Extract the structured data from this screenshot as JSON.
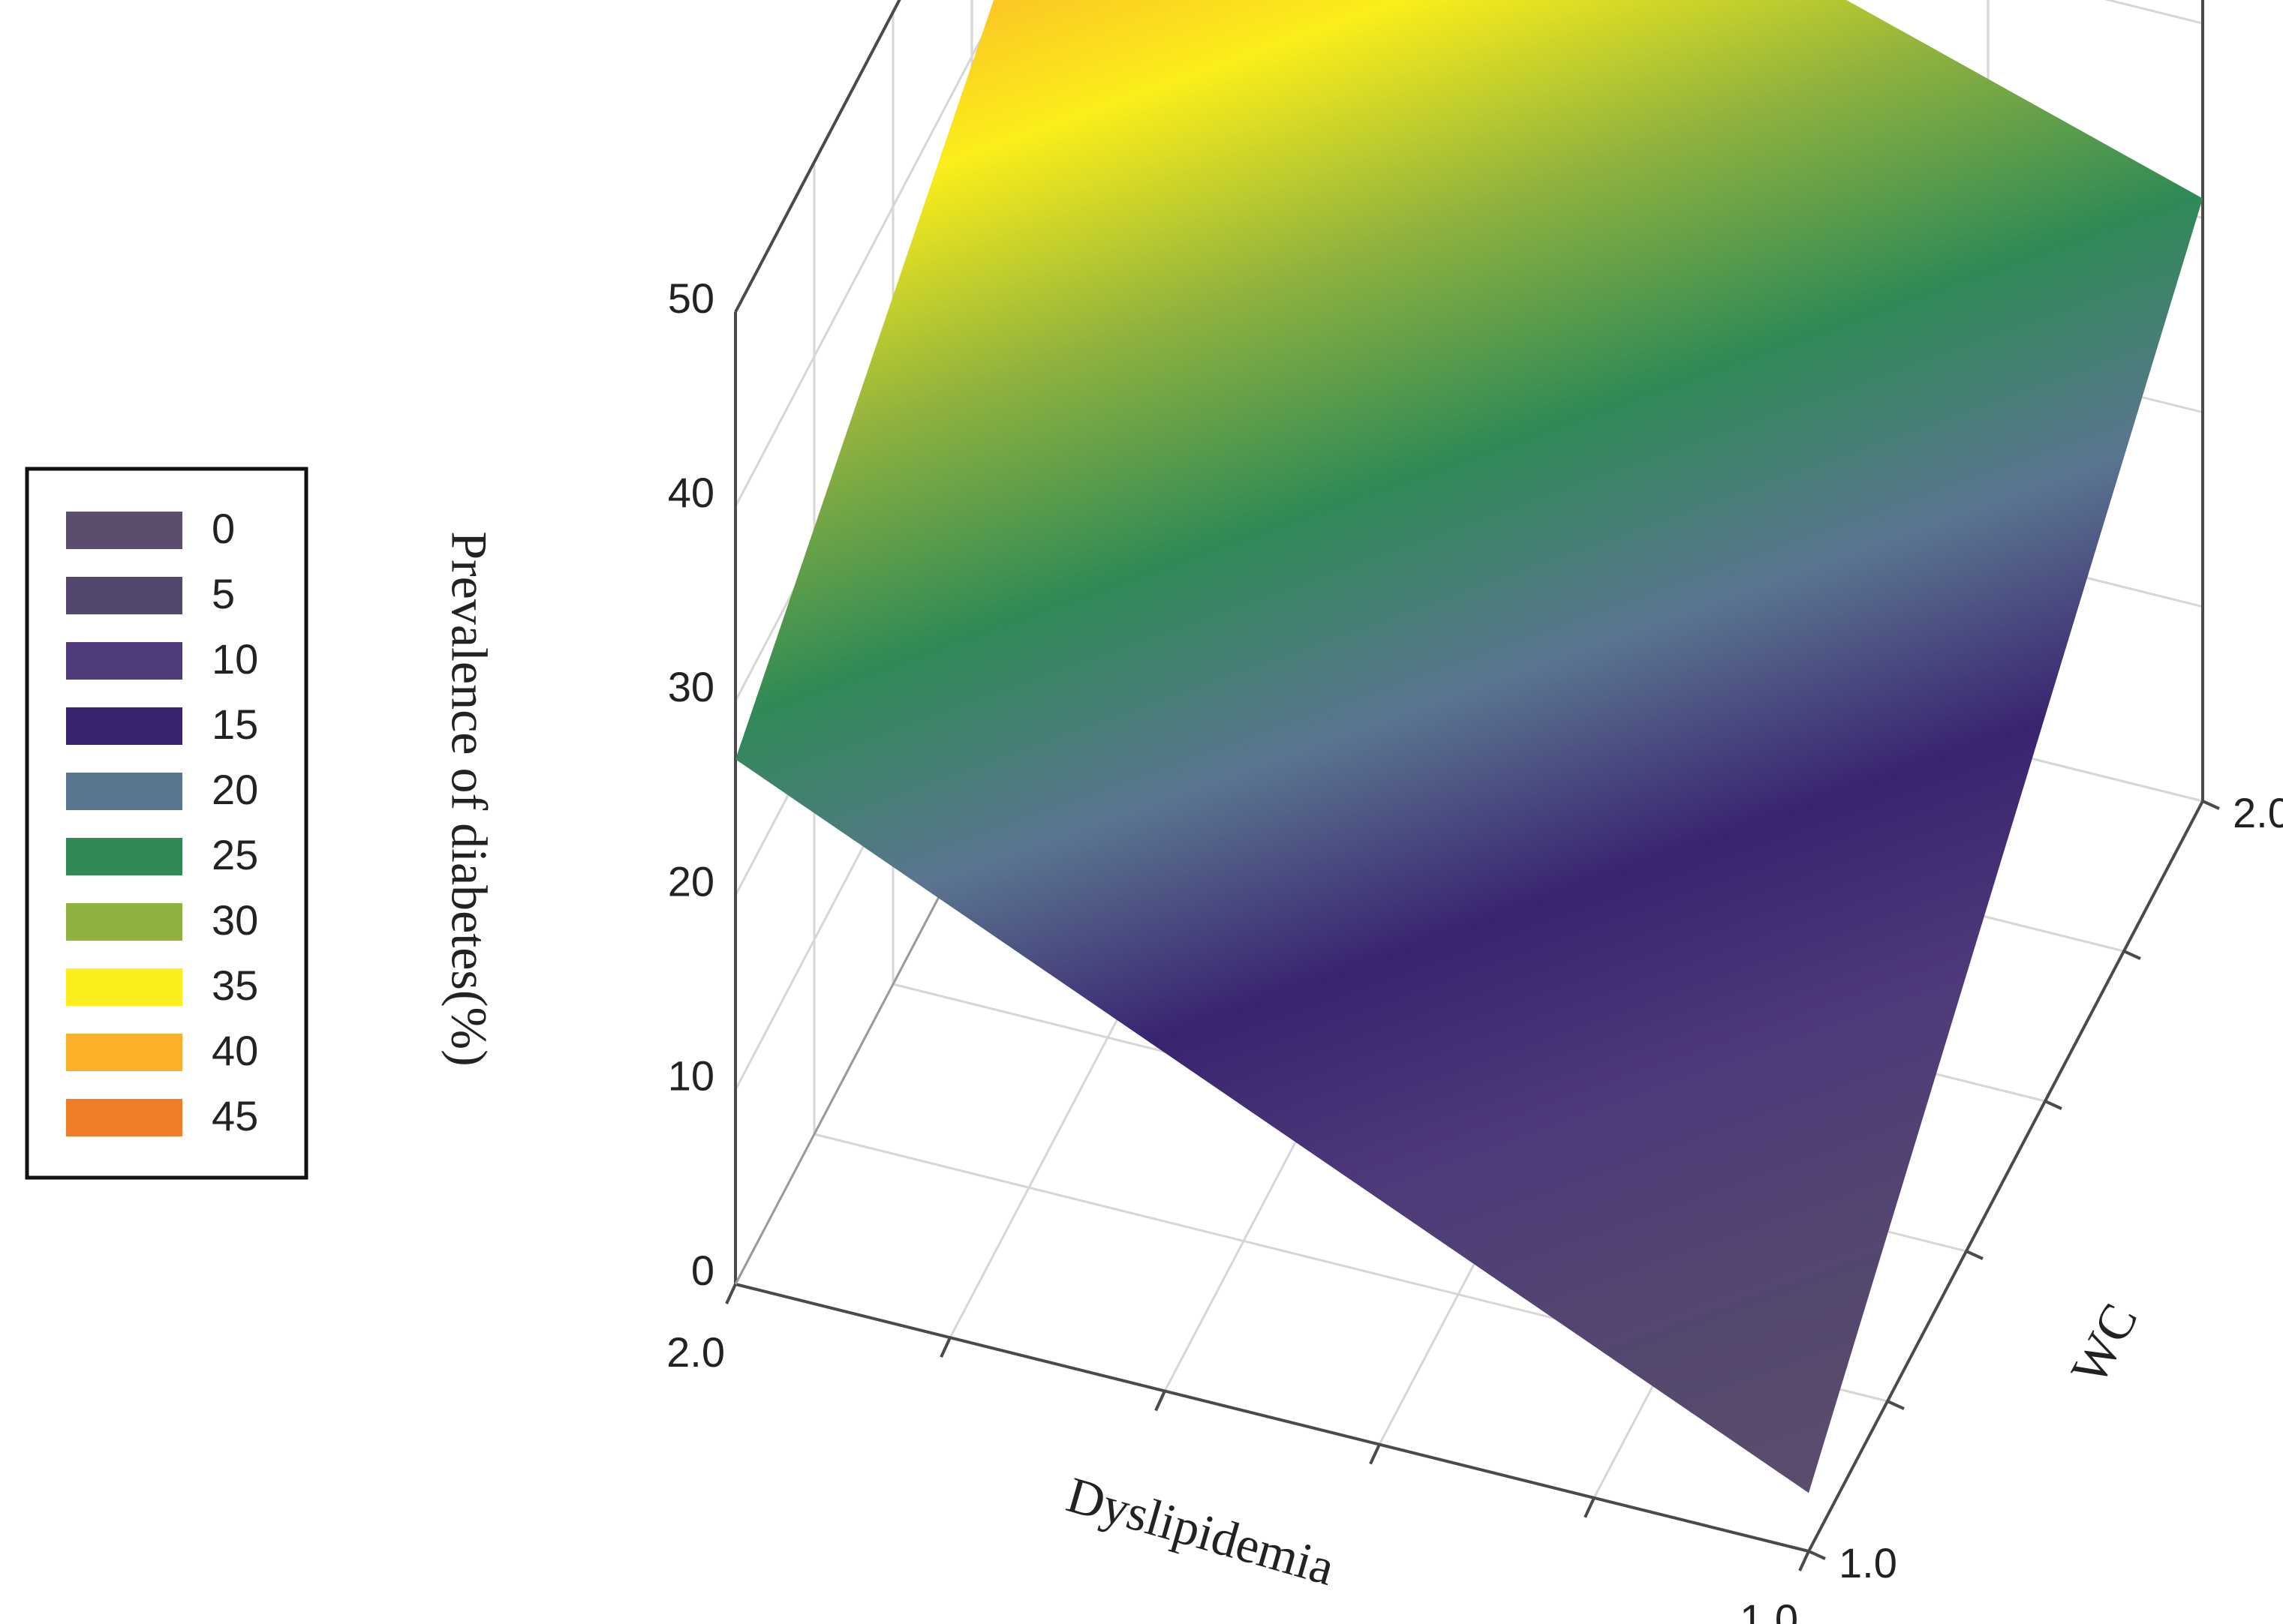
{
  "chart_data": {
    "type": "surface",
    "title": "",
    "x_axis": {
      "label": "Dyslipidemia",
      "ticks": [
        "2.0",
        "1.0"
      ],
      "range": [
        1.0,
        2.0
      ]
    },
    "y_axis": {
      "label": "WC",
      "ticks": [
        "1.0",
        "2.0"
      ],
      "range": [
        1.0,
        2.0
      ]
    },
    "z_axis": {
      "label": "Prevalence of diabetes(%)",
      "ticks": [
        "0",
        "10",
        "20",
        "30",
        "40",
        "50"
      ],
      "range": [
        0,
        50
      ]
    },
    "grid": true,
    "surface": [
      {
        "dyslipidemia": 1.0,
        "wc": 1.0,
        "prevalence": 3
      },
      {
        "dyslipidemia": 2.0,
        "wc": 1.0,
        "prevalence": 27
      },
      {
        "dyslipidemia": 1.0,
        "wc": 2.0,
        "prevalence": 31
      },
      {
        "dyslipidemia": 2.0,
        "wc": 2.0,
        "prevalence": 48
      }
    ],
    "legend": {
      "position": "left",
      "items": [
        {
          "label": "0",
          "color": "#5b4d6b"
        },
        {
          "label": "5",
          "color": "#54476f"
        },
        {
          "label": "10",
          "color": "#4f3a7a"
        },
        {
          "label": "15",
          "color": "#3a2470"
        },
        {
          "label": "20",
          "color": "#5a7590"
        },
        {
          "label": "25",
          "color": "#2f8a56"
        },
        {
          "label": "30",
          "color": "#8fb23e"
        },
        {
          "label": "35",
          "color": "#fbee1a"
        },
        {
          "label": "40",
          "color": "#fbb02a"
        },
        {
          "label": "45",
          "color": "#ef7d27"
        }
      ]
    }
  }
}
